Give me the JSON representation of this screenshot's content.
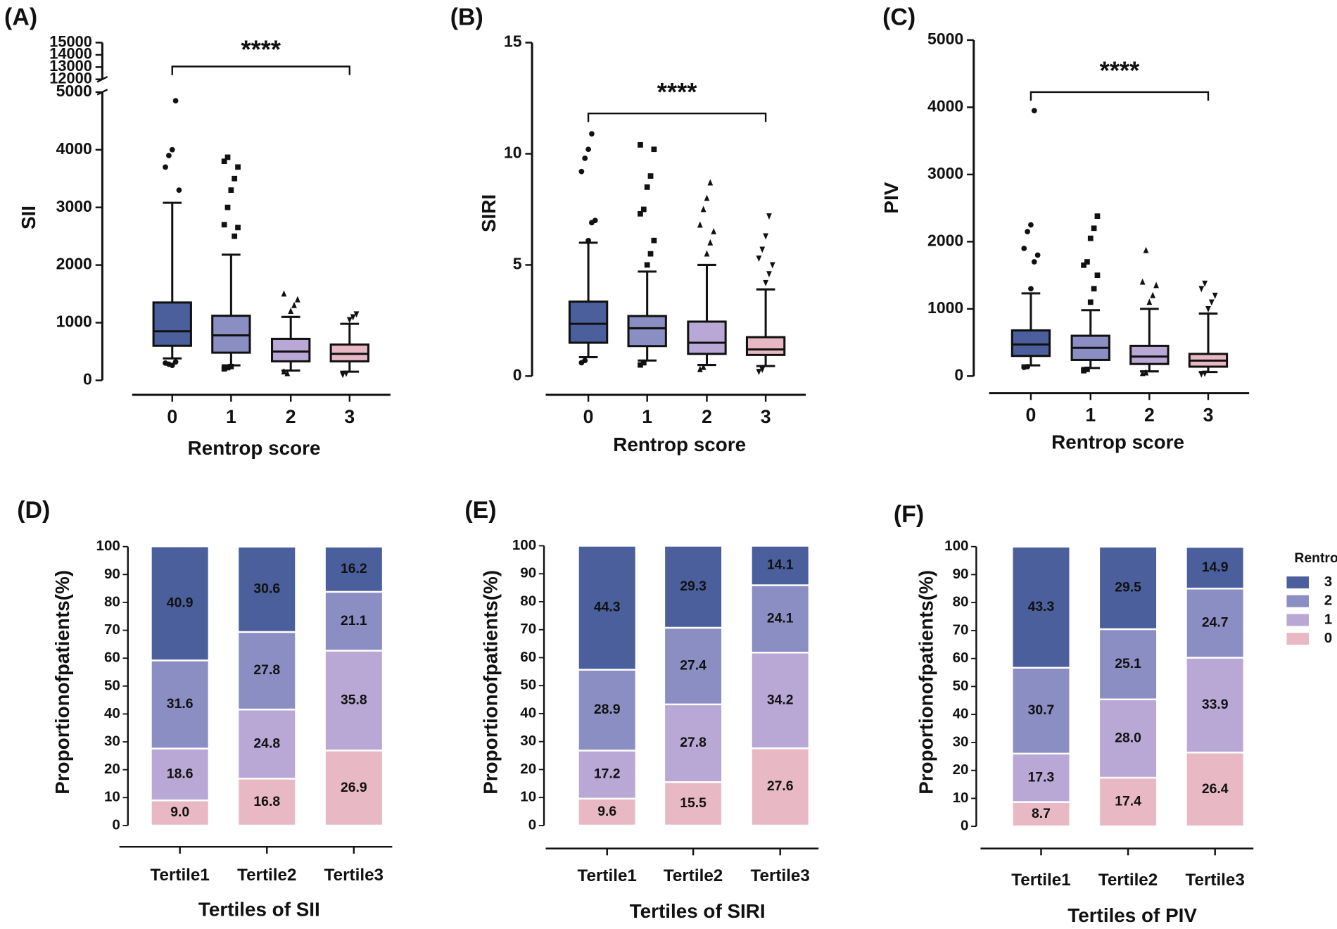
{
  "chart_data": [
    {
      "type": "box",
      "title": "(A)",
      "y_label": "SII",
      "x_label": "Rentrop score",
      "annotation": "****",
      "categories": [
        "0",
        "1",
        "2",
        "3"
      ],
      "ylim": [
        0,
        5000
      ],
      "yticks": [
        0,
        1000,
        2000,
        3000,
        4000,
        5000
      ],
      "break_ylim": [
        12000,
        15000
      ],
      "break_yticks": [
        12000,
        13000,
        14000,
        15000
      ],
      "boxes": [
        {
          "color": "#4a5f9b",
          "marker": "circle",
          "min": 380,
          "q1": 600,
          "median": 850,
          "q3": 1350,
          "max": 3080,
          "outliers": [
            300,
            280,
            260,
            320,
            3300,
            3700,
            3900,
            4000,
            4850
          ]
        },
        {
          "color": "#8b8ec3",
          "marker": "square",
          "min": 260,
          "q1": 480,
          "median": 780,
          "q3": 1120,
          "max": 2180,
          "outliers": [
            200,
            220,
            240,
            2500,
            2650,
            2700,
            3000,
            3300,
            3500,
            3700,
            3800,
            3870
          ]
        },
        {
          "color": "#b9a8d5",
          "marker": "triangle",
          "min": 170,
          "q1": 330,
          "median": 500,
          "q3": 720,
          "max": 1100,
          "outliers": [
            150,
            120,
            1200,
            1300,
            1400,
            1500
          ]
        },
        {
          "color": "#e8b9c4",
          "marker": "triangle-down",
          "min": 150,
          "q1": 330,
          "median": 460,
          "q3": 620,
          "max": 980,
          "outliers": [
            100,
            120,
            1050,
            1100,
            1150
          ]
        }
      ]
    },
    {
      "type": "box",
      "title": "(B)",
      "y_label": "SIRI",
      "x_label": "Rentrop score",
      "annotation": "****",
      "categories": [
        "0",
        "1",
        "2",
        "3"
      ],
      "ylim": [
        0,
        15
      ],
      "yticks": [
        0,
        5,
        10,
        15
      ],
      "boxes": [
        {
          "color": "#4a5f9b",
          "marker": "circle",
          "min": 0.85,
          "q1": 1.5,
          "median": 2.35,
          "q3": 3.35,
          "max": 6.0,
          "outliers": [
            0.6,
            0.7,
            6.1,
            6.9,
            7.0,
            9.2,
            9.8,
            10.2,
            10.9
          ]
        },
        {
          "color": "#8b8ec3",
          "marker": "square",
          "min": 0.7,
          "q1": 1.35,
          "median": 2.15,
          "q3": 2.7,
          "max": 4.7,
          "outliers": [
            0.5,
            0.6,
            5.0,
            5.5,
            6.1,
            7.3,
            7.5,
            8.5,
            9.0,
            10.2,
            10.4
          ]
        },
        {
          "color": "#b9a8d5",
          "marker": "triangle",
          "min": 0.5,
          "q1": 1.0,
          "median": 1.5,
          "q3": 2.45,
          "max": 5.0,
          "outliers": [
            0.3,
            0.4,
            5.5,
            6.0,
            6.5,
            6.8,
            7.5,
            8.0,
            8.7
          ]
        },
        {
          "color": "#e8b9c4",
          "marker": "triangle-down",
          "min": 0.45,
          "q1": 0.95,
          "median": 1.2,
          "q3": 1.75,
          "max": 3.9,
          "outliers": [
            0.2,
            0.3,
            4.2,
            4.6,
            5.0,
            5.3,
            5.7,
            6.3,
            7.2
          ]
        }
      ]
    },
    {
      "type": "box",
      "title": "(C)",
      "y_label": "PIV",
      "x_label": "Rentrop score",
      "annotation": "****",
      "categories": [
        "0",
        "1",
        "2",
        "3"
      ],
      "ylim": [
        0,
        5000
      ],
      "yticks": [
        0,
        1000,
        2000,
        3000,
        4000,
        5000
      ],
      "boxes": [
        {
          "color": "#4a5f9b",
          "marker": "circle",
          "min": 160,
          "q1": 300,
          "median": 470,
          "q3": 680,
          "max": 1230,
          "outliers": [
            130,
            140,
            1300,
            1700,
            1800,
            1900,
            2150,
            2250,
            3950
          ]
        },
        {
          "color": "#8b8ec3",
          "marker": "square",
          "min": 120,
          "q1": 240,
          "median": 420,
          "q3": 600,
          "max": 980,
          "outliers": [
            80,
            100,
            1100,
            1300,
            1500,
            1650,
            1700,
            2050,
            2200,
            2380
          ]
        },
        {
          "color": "#b9a8d5",
          "marker": "triangle",
          "min": 70,
          "q1": 180,
          "median": 290,
          "q3": 450,
          "max": 1000,
          "outliers": [
            40,
            50,
            1100,
            1200,
            1350,
            1400,
            1870
          ]
        },
        {
          "color": "#e8b9c4",
          "marker": "triangle-down",
          "min": 60,
          "q1": 140,
          "median": 230,
          "q3": 330,
          "max": 930,
          "outliers": [
            30,
            40,
            1000,
            1100,
            1200,
            1300,
            1380
          ]
        }
      ]
    },
    {
      "type": "stacked_bar",
      "title": "(D)",
      "y_label": "Proportionofpatients(%)",
      "x_label": "Tertiles of SII",
      "categories": [
        "Tertile1",
        "Tertile2",
        "Tertile3"
      ],
      "ylim": [
        0,
        100
      ],
      "yticks": [
        0,
        10,
        20,
        30,
        40,
        50,
        60,
        70,
        80,
        90,
        100
      ],
      "legend": false,
      "series": [
        {
          "name": "0",
          "color": "#e8b9c4",
          "values": [
            9.0,
            16.8,
            26.9
          ],
          "value_labels": [
            "9.0",
            "16.8",
            "26.9"
          ]
        },
        {
          "name": "1",
          "color": "#b9a8d5",
          "values": [
            18.6,
            24.8,
            35.8
          ],
          "value_labels": [
            "18.6",
            "24.8",
            "35.8"
          ]
        },
        {
          "name": "2",
          "color": "#8b8ec3",
          "values": [
            31.6,
            27.8,
            21.1
          ],
          "value_labels": [
            "31.6",
            "27.8",
            "21.1"
          ]
        },
        {
          "name": "3",
          "color": "#4a5f9b",
          "values": [
            40.9,
            30.6,
            16.2
          ],
          "value_labels": [
            "40.9",
            "30.6",
            "16.2"
          ]
        }
      ]
    },
    {
      "type": "stacked_bar",
      "title": "(E)",
      "y_label": "Proportionofpatients(%)",
      "x_label": "Tertiles of SIRI",
      "categories": [
        "Tertile1",
        "Tertile2",
        "Tertile3"
      ],
      "ylim": [
        0,
        100
      ],
      "yticks": [
        0,
        10,
        20,
        30,
        40,
        50,
        60,
        70,
        80,
        90,
        100
      ],
      "legend": false,
      "series": [
        {
          "name": "0",
          "color": "#e8b9c4",
          "values": [
            9.6,
            15.5,
            27.6
          ],
          "value_labels": [
            "9.6",
            "15.5",
            "27.6"
          ]
        },
        {
          "name": "1",
          "color": "#b9a8d5",
          "values": [
            17.2,
            27.8,
            34.2
          ],
          "value_labels": [
            "17.2",
            "27.8",
            "34.2"
          ]
        },
        {
          "name": "2",
          "color": "#8b8ec3",
          "values": [
            28.9,
            27.4,
            24.1
          ],
          "value_labels": [
            "28.9",
            "27.4",
            "24.1"
          ]
        },
        {
          "name": "3",
          "color": "#4a5f9b",
          "values": [
            44.3,
            29.3,
            14.1
          ],
          "value_labels": [
            "44.3",
            "29.3",
            "14.1"
          ]
        }
      ]
    },
    {
      "type": "stacked_bar",
      "title": "(F)",
      "y_label": "Proportionofpatients(%)",
      "x_label": "Tertiles of PIV",
      "categories": [
        "Tertile1",
        "Tertile2",
        "Tertile3"
      ],
      "ylim": [
        0,
        100
      ],
      "yticks": [
        0,
        10,
        20,
        30,
        40,
        50,
        60,
        70,
        80,
        90,
        100
      ],
      "legend": true,
      "legend_title": "Rentrop",
      "series": [
        {
          "name": "0",
          "color": "#e8b9c4",
          "values": [
            8.7,
            17.4,
            26.4
          ],
          "value_labels": [
            "8.7",
            "17.4",
            "26.4"
          ]
        },
        {
          "name": "1",
          "color": "#b9a8d5",
          "values": [
            17.3,
            28.0,
            33.9
          ],
          "value_labels": [
            "17.3",
            "28.0",
            "33.9"
          ]
        },
        {
          "name": "2",
          "color": "#8b8ec3",
          "values": [
            30.7,
            25.1,
            24.7
          ],
          "value_labels": [
            "30.7",
            "25.1",
            "24.7"
          ]
        },
        {
          "name": "3",
          "color": "#4a5f9b",
          "values": [
            43.3,
            29.5,
            14.9
          ],
          "value_labels": [
            "43.3",
            "29.5",
            "14.9"
          ]
        }
      ]
    }
  ]
}
